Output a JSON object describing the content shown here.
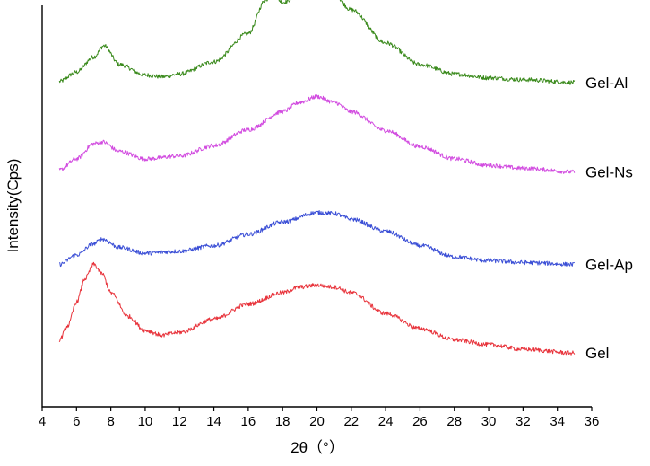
{
  "chart_data": {
    "type": "line",
    "xlabel": "2θ（°）",
    "ylabel": "Intensity(Cps)",
    "xlim": [
      4,
      36
    ],
    "x_ticks": [
      4,
      6,
      8,
      10,
      12,
      14,
      16,
      18,
      20,
      22,
      24,
      26,
      28,
      30,
      32,
      34,
      36
    ],
    "y_ticks_shown": false,
    "grid": false,
    "legend": "none (series labeled inline at right end of each curve)",
    "y_offset_stacked": true,
    "series": [
      {
        "name": "Gel-Al",
        "color": "#3a8a1c",
        "offset": 3.0,
        "points": [
          [
            5,
            0.04
          ],
          [
            6,
            0.14
          ],
          [
            7,
            0.3
          ],
          [
            7.6,
            0.42
          ],
          [
            8.5,
            0.22
          ],
          [
            10,
            0.11
          ],
          [
            11,
            0.09
          ],
          [
            12,
            0.12
          ],
          [
            14,
            0.25
          ],
          [
            16,
            0.55
          ],
          [
            17,
            0.9
          ],
          [
            17.4,
            0.98
          ],
          [
            18,
            0.88
          ],
          [
            19,
            0.95
          ],
          [
            20,
            1.02
          ],
          [
            21,
            0.96
          ],
          [
            22,
            0.8
          ],
          [
            24,
            0.45
          ],
          [
            26,
            0.22
          ],
          [
            28,
            0.12
          ],
          [
            30,
            0.08
          ],
          [
            32,
            0.06
          ],
          [
            35,
            0.03
          ]
        ]
      },
      {
        "name": "Gel-Ns",
        "color": "#d24ce0",
        "offset": 2.0,
        "points": [
          [
            5,
            0.1
          ],
          [
            6,
            0.22
          ],
          [
            7,
            0.38
          ],
          [
            7.5,
            0.4
          ],
          [
            8.5,
            0.3
          ],
          [
            10,
            0.22
          ],
          [
            12,
            0.25
          ],
          [
            14,
            0.36
          ],
          [
            16,
            0.53
          ],
          [
            18,
            0.72
          ],
          [
            19,
            0.82
          ],
          [
            20,
            0.88
          ],
          [
            21,
            0.82
          ],
          [
            22,
            0.72
          ],
          [
            24,
            0.52
          ],
          [
            26,
            0.35
          ],
          [
            28,
            0.22
          ],
          [
            30,
            0.15
          ],
          [
            32,
            0.12
          ],
          [
            35,
            0.08
          ]
        ]
      },
      {
        "name": "Gel-Ap",
        "color": "#3b4fd6",
        "offset": 1.0,
        "points": [
          [
            5,
            0.1
          ],
          [
            6,
            0.2
          ],
          [
            7,
            0.32
          ],
          [
            7.5,
            0.37
          ],
          [
            8.5,
            0.28
          ],
          [
            10,
            0.22
          ],
          [
            12,
            0.24
          ],
          [
            14,
            0.3
          ],
          [
            16,
            0.42
          ],
          [
            18,
            0.55
          ],
          [
            20,
            0.65
          ],
          [
            21,
            0.64
          ],
          [
            22,
            0.58
          ],
          [
            24,
            0.45
          ],
          [
            26,
            0.3
          ],
          [
            28,
            0.18
          ],
          [
            30,
            0.14
          ],
          [
            32,
            0.12
          ],
          [
            35,
            0.1
          ]
        ]
      },
      {
        "name": "Gel",
        "color": "#e8343c",
        "offset": 0.0,
        "points": [
          [
            5,
            0.3
          ],
          [
            5.5,
            0.45
          ],
          [
            6,
            0.7
          ],
          [
            6.5,
            0.95
          ],
          [
            7,
            1.1
          ],
          [
            7.5,
            1.0
          ],
          [
            8,
            0.8
          ],
          [
            9,
            0.55
          ],
          [
            10,
            0.4
          ],
          [
            11,
            0.35
          ],
          [
            12,
            0.38
          ],
          [
            14,
            0.52
          ],
          [
            16,
            0.68
          ],
          [
            18,
            0.8
          ],
          [
            19,
            0.86
          ],
          [
            20,
            0.88
          ],
          [
            21,
            0.86
          ],
          [
            22,
            0.8
          ],
          [
            24,
            0.58
          ],
          [
            26,
            0.42
          ],
          [
            28,
            0.3
          ],
          [
            30,
            0.25
          ],
          [
            32,
            0.2
          ],
          [
            35,
            0.16
          ]
        ]
      }
    ]
  }
}
